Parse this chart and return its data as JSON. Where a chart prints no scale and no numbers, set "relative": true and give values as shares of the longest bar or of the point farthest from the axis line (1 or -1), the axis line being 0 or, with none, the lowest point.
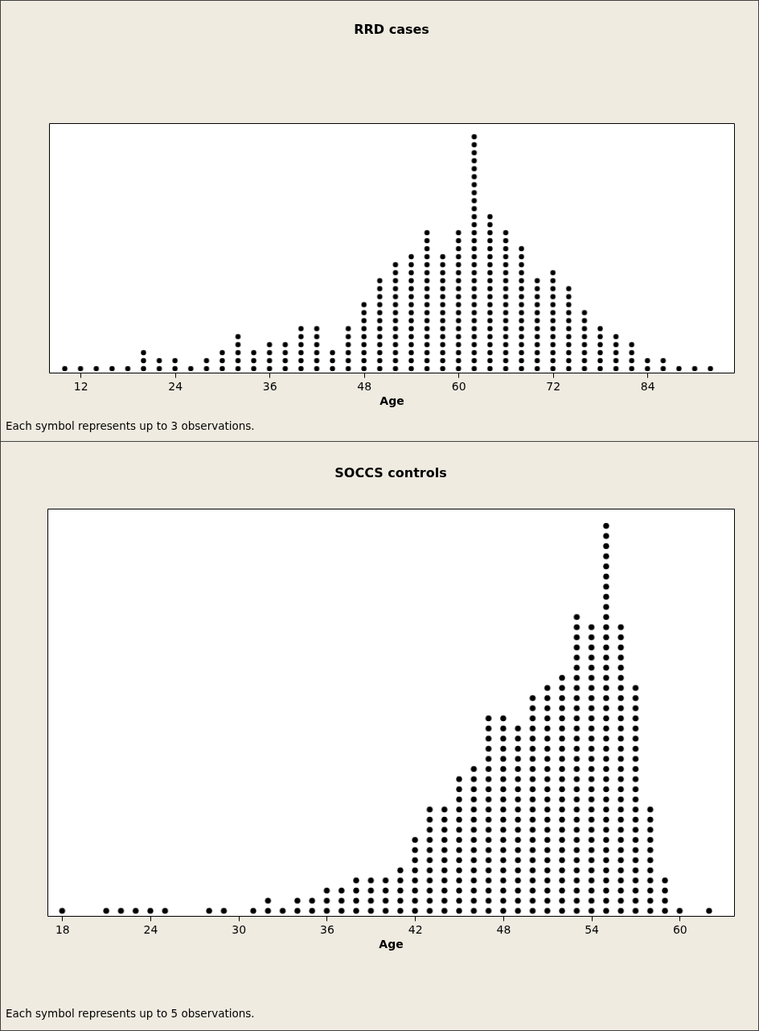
{
  "chart_data": [
    {
      "type": "bar",
      "title": "RRD cases",
      "xlabel": "Age",
      "relative": true,
      "color": "#000000",
      "xlim": [
        8,
        95
      ],
      "xticks": [
        12,
        24,
        36,
        48,
        60,
        72,
        84
      ],
      "x": [
        10,
        12,
        14,
        16,
        18,
        20,
        22,
        24,
        26,
        28,
        30,
        32,
        34,
        36,
        38,
        40,
        42,
        44,
        46,
        48,
        50,
        52,
        54,
        56,
        58,
        60,
        62,
        64,
        66,
        68,
        70,
        72,
        74,
        76,
        78,
        80,
        82,
        84,
        86,
        88,
        90,
        92
      ],
      "values": [
        0.0333,
        0.0333,
        0.0333,
        0.0333,
        0.0333,
        0.1,
        0.0667,
        0.0667,
        0.0333,
        0.0667,
        0.1,
        0.1667,
        0.1,
        0.1333,
        0.1333,
        0.2,
        0.2,
        0.1,
        0.2,
        0.3,
        0.4,
        0.4667,
        0.5,
        0.6,
        0.5,
        0.6,
        1,
        0.6667,
        0.6,
        0.5333,
        0.4,
        0.4333,
        0.3667,
        0.2667,
        0.2,
        0.1667,
        0.1333,
        0.0667,
        0.0667,
        0.0333,
        0.0333,
        0.0333
      ],
      "annotations": [
        "Each symbol represents up to 3 observations."
      ]
    },
    {
      "type": "bar",
      "title": "SOCCS controls",
      "xlabel": "Age",
      "relative": true,
      "color": "#000000",
      "xlim": [
        17,
        63.7
      ],
      "xticks": [
        18,
        24,
        30,
        36,
        42,
        48,
        54,
        60
      ],
      "x": [
        18,
        21,
        22,
        23,
        24,
        25,
        28,
        29,
        31,
        32,
        33,
        34,
        35,
        36,
        37,
        38,
        39,
        40,
        41,
        42,
        43,
        44,
        45,
        46,
        47,
        48,
        49,
        50,
        51,
        52,
        53,
        54,
        55,
        56,
        57,
        58,
        59,
        60,
        62
      ],
      "values": [
        0.0256,
        0.0256,
        0.0256,
        0.0256,
        0.0256,
        0.0256,
        0.0256,
        0.0256,
        0.0256,
        0.0513,
        0.0256,
        0.0513,
        0.0513,
        0.0769,
        0.0769,
        0.1026,
        0.1026,
        0.1026,
        0.1282,
        0.2051,
        0.2821,
        0.2821,
        0.359,
        0.3846,
        0.5128,
        0.5128,
        0.4872,
        0.5641,
        0.5897,
        0.6154,
        0.7692,
        0.7436,
        1,
        0.7436,
        0.5897,
        0.2821,
        0.1026,
        0.0256,
        0.0256
      ],
      "annotations": [
        "Each symbol represents up to 5 observations."
      ]
    }
  ]
}
